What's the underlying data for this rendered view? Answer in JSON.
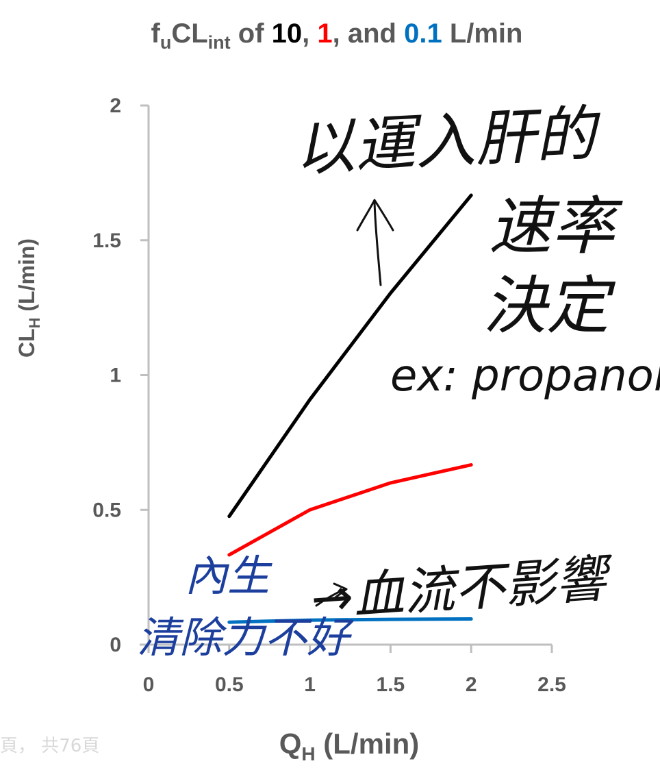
{
  "chart_data": {
    "type": "line",
    "title_parts": [
      {
        "text": "f",
        "role": "normal"
      },
      {
        "text": "u",
        "role": "sub"
      },
      {
        "text": "CL",
        "role": "normal"
      },
      {
        "text": "int",
        "role": "sub"
      },
      {
        "text": " of  ",
        "role": "normal"
      },
      {
        "text": "10",
        "role": "black"
      },
      {
        "text": ", ",
        "role": "normal"
      },
      {
        "text": "1",
        "role": "red"
      },
      {
        "text": ", and ",
        "role": "normal"
      },
      {
        "text": "0.1",
        "role": "blue"
      },
      {
        "text": " L/min",
        "role": "normal"
      }
    ],
    "xlabel": {
      "main": "Q",
      "sub": "H",
      "rest": " (L/min)"
    },
    "ylabel": {
      "main": "CL",
      "sub": "H",
      "rest": " (L/min)"
    },
    "xlim": [
      0,
      2.5
    ],
    "ylim": [
      0,
      2
    ],
    "xticks": [
      "0",
      "0.5",
      "1",
      "1.5",
      "2",
      "2.5"
    ],
    "yticks": [
      "0",
      "0.5",
      "1",
      "1.5",
      "2"
    ],
    "grid": false,
    "series": [
      {
        "color": "#000000",
        "x": [
          0.5,
          1.0,
          1.5,
          2.0
        ],
        "y": [
          0.476,
          0.909,
          1.304,
          1.667
        ]
      },
      {
        "color": "#ff0000",
        "x": [
          0.5,
          1.0,
          1.5,
          2.0
        ],
        "y": [
          0.333,
          0.5,
          0.6,
          0.667
        ]
      },
      {
        "color": "#0070c0",
        "x": [
          0.5,
          1.0,
          1.5,
          2.0
        ],
        "y": [
          0.0833,
          0.0909,
          0.0938,
          0.0952
        ]
      }
    ],
    "annotations": [
      {
        "text": "以運入肝的",
        "color": "#111111"
      },
      {
        "text": "速率",
        "color": "#111111"
      },
      {
        "text": "決定",
        "color": "#111111"
      },
      {
        "text": "ex: propanolo",
        "color": "#111111"
      },
      {
        "text": "內生",
        "color": "#1c3f9e"
      },
      {
        "text": "清除力不好",
        "color": "#1c3f9e"
      },
      {
        "text": "→血流不影響",
        "color": "#111111"
      }
    ]
  },
  "footer_text": "頁， 共76頁",
  "colors": {
    "black": "#000000",
    "red": "#ff0000",
    "blue": "#0070c0",
    "text": "#595959",
    "axis": "#bfbfbf"
  }
}
